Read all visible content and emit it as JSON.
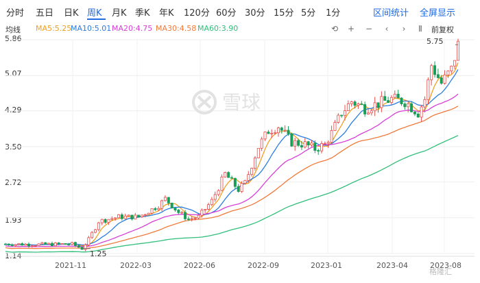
{
  "periods": [
    {
      "label": "分时"
    },
    {
      "label": "五日"
    },
    {
      "label": "日K"
    },
    {
      "label": "周K"
    },
    {
      "label": "月K"
    },
    {
      "label": "季K"
    },
    {
      "label": "年K"
    },
    {
      "label": "120分"
    },
    {
      "label": "60分"
    },
    {
      "label": "30分"
    },
    {
      "label": "15分"
    },
    {
      "label": "5分"
    },
    {
      "label": "1分"
    }
  ],
  "active_period": "周K",
  "right_links": {
    "interval_stats": "区间统计",
    "fullscreen": "全屏显示"
  },
  "ma_legend": {
    "label": "均线",
    "ma5": "MA5:5.25",
    "ma10": "MA10:5.01",
    "ma20": "MA20:4.75",
    "ma30": "MA30:4.58",
    "ma60": "MA60:3.90"
  },
  "toolbar": {
    "reset": "⟲",
    "zoom_in": "+",
    "zoom_out": "−",
    "prev": "‹",
    "next": "›",
    "pause": "Ⅱ",
    "adjust": "前复权"
  },
  "watermark": "雪球",
  "corner_watermark": "格隆汇",
  "colors": {
    "accent": "#1f6ae3",
    "up": "#e84a4a",
    "down": "#1a9d58",
    "ma5": "#f0a020",
    "ma10": "#2b7de0",
    "ma20": "#d63fd6",
    "ma30": "#f07a3a",
    "ma60": "#2fbf7a"
  },
  "chart_data": {
    "type": "candlestick",
    "y_ticks": [
      "5.86",
      "5.07",
      "4.29",
      "3.50",
      "2.72",
      "1.93",
      "1.14"
    ],
    "x_ticks": [
      "2021-11",
      "2022-03",
      "2022-06",
      "2022-09",
      "2023-01",
      "2023-04",
      "2023-08"
    ],
    "ylim": [
      1.14,
      5.86
    ],
    "high_label": "5.75",
    "low_label": "1.25",
    "grid": true
  }
}
